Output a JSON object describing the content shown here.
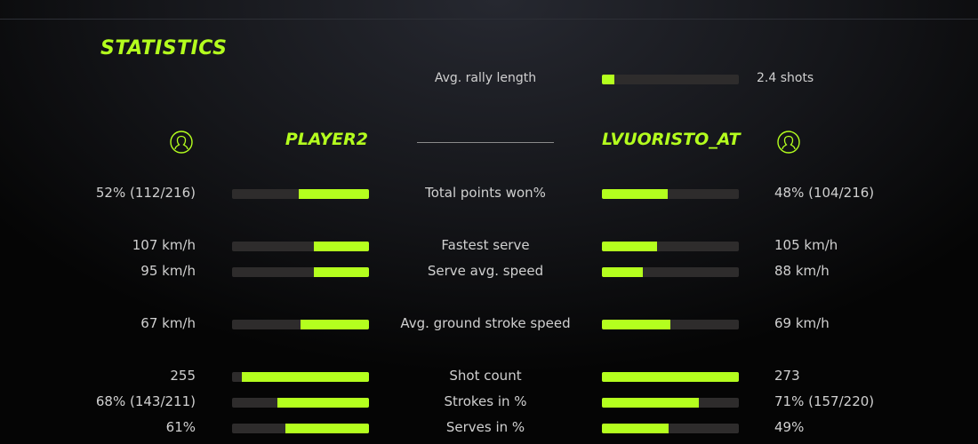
{
  "title": "STATISTICS",
  "accent": "#b4ff1e",
  "rally": {
    "label": "Avg. rally length",
    "value": "2.4 shots",
    "fill": 0.09
  },
  "players": {
    "left": {
      "name": "PLAYER2",
      "icon": "user-icon"
    },
    "right": {
      "name": "LVUORISTO_AT",
      "icon": "user-icon"
    }
  },
  "rows": [
    {
      "label": "Total points won%",
      "left": "52% (112/216)",
      "right": "48% (104/216)",
      "left_fill": 0.51,
      "right_fill": 0.48
    },
    {
      "label": "Fastest serve",
      "left": "107 km/h",
      "right": "105 km/h",
      "left_fill": 0.4,
      "right_fill": 0.4
    },
    {
      "label": "Serve avg. speed",
      "left": "95 km/h",
      "right": "88 km/h",
      "left_fill": 0.4,
      "right_fill": 0.3
    },
    {
      "label": "Avg. ground stroke speed",
      "left": "67 km/h",
      "right": "69 km/h",
      "left_fill": 0.5,
      "right_fill": 0.5
    },
    {
      "label": "Shot count",
      "left": "255",
      "right": "273",
      "left_fill": 0.93,
      "right_fill": 1.0
    },
    {
      "label": "Strokes in %",
      "left": "68% (143/211)",
      "right": "71% (157/220)",
      "left_fill": 0.67,
      "right_fill": 0.71
    },
    {
      "label": "Serves in %",
      "left": "61%",
      "right": "49%",
      "left_fill": 0.61,
      "right_fill": 0.49
    }
  ]
}
